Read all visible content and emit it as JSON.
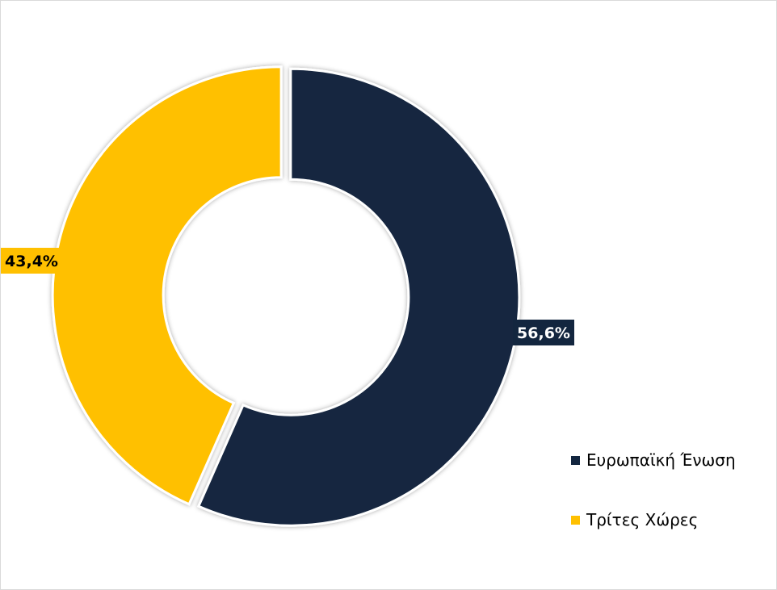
{
  "chart_data": {
    "type": "pie",
    "donut": true,
    "title": "",
    "slices": [
      {
        "label": "Ευρωπαϊκή Ένωση",
        "value": 56.6,
        "value_label": "56,6%",
        "color": "#13263f",
        "label_text_color": "#ffffff"
      },
      {
        "label": "Τρίτες Χώρες",
        "value": 43.4,
        "value_label": "43,4%",
        "color": "#ffc000",
        "label_text_color": "#000000"
      }
    ],
    "legend_position": "bottom-right"
  }
}
